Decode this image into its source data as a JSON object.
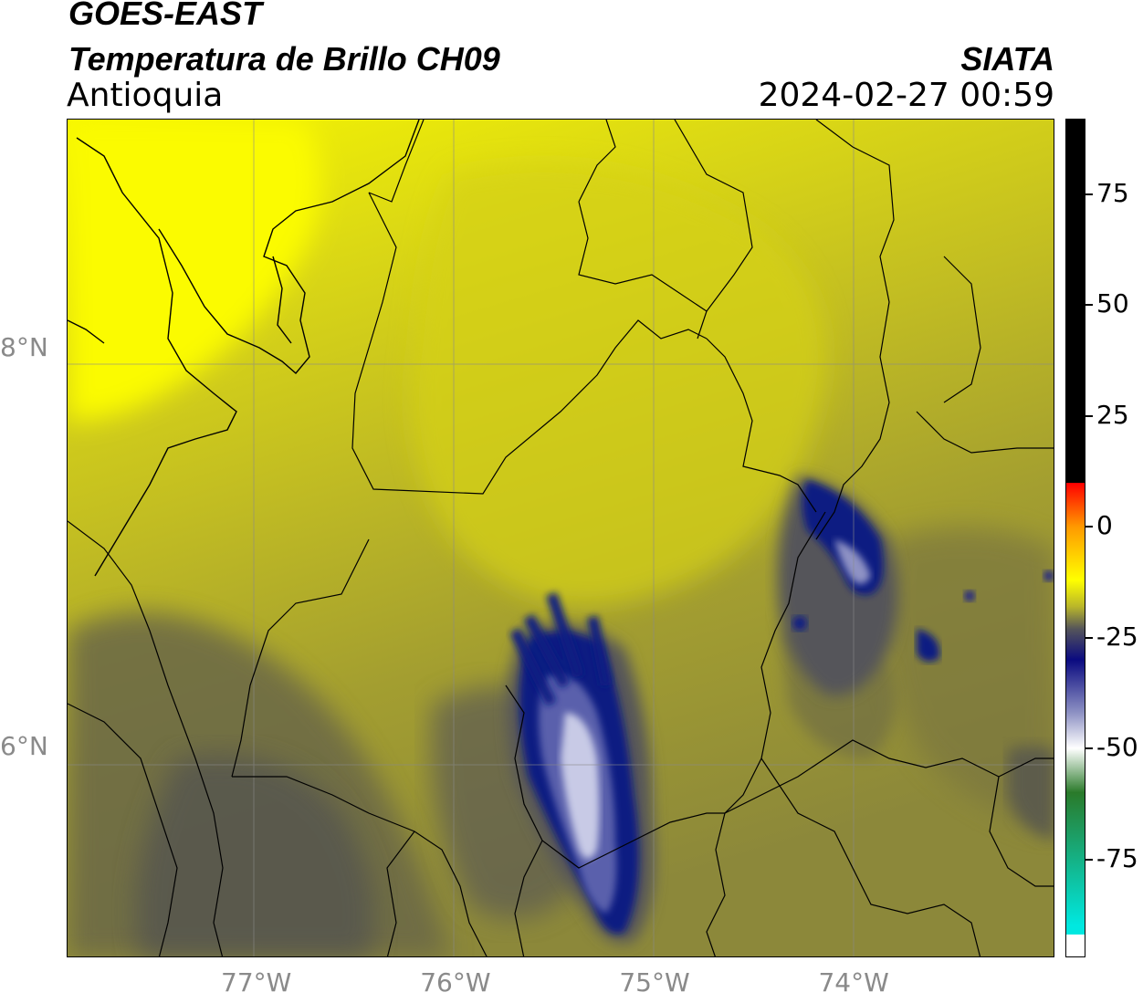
{
  "header": {
    "satellite": "GOES-EAST",
    "product": "Temperatura de Brillo CH09",
    "region": "Antioquia",
    "source": "SIATA",
    "datetime": "2024-02-27 00:59"
  },
  "map": {
    "lat_labels": [
      {
        "value": 8,
        "label": "8°N"
      },
      {
        "value": 6,
        "label": "6°N"
      }
    ],
    "lon_labels": [
      {
        "value": -77,
        "label": "77°W"
      },
      {
        "value": -76,
        "label": "76°W"
      },
      {
        "value": -75,
        "label": "75°W"
      },
      {
        "value": -74,
        "label": "74°W"
      }
    ],
    "extent": {
      "lon_min": -77.94,
      "lon_max": -72.98,
      "lat_min": 4.95,
      "lat_max": 9.15
    },
    "background_colors": {
      "light": "#f6f600",
      "mid": "#c8c31e",
      "dark": "#8e8a38",
      "darker": "#5c5a52"
    },
    "cold_cloud_colors": {
      "core": "#0f1a82",
      "mid": "#6f74b4",
      "light": "#d8daee"
    }
  },
  "colorbar": {
    "ticks": [
      {
        "value": 75,
        "label": "75"
      },
      {
        "value": 50,
        "label": "50"
      },
      {
        "value": 25,
        "label": "25"
      },
      {
        "value": 0,
        "label": "0"
      },
      {
        "value": -25,
        "label": "-25"
      },
      {
        "value": -50,
        "label": "-50"
      },
      {
        "value": -75,
        "label": "-75"
      }
    ],
    "range": [
      -97,
      92
    ],
    "stops": [
      {
        "value": 92,
        "color": "#000000"
      },
      {
        "value": 10,
        "color": "#000000"
      },
      {
        "value": 9.9,
        "color": "#ff0000"
      },
      {
        "value": 0,
        "color": "#ff9a00"
      },
      {
        "value": -12,
        "color": "#ffff00"
      },
      {
        "value": -18,
        "color": "#b9b62a"
      },
      {
        "value": -23,
        "color": "#55555a"
      },
      {
        "value": -30,
        "color": "#0a0a80"
      },
      {
        "value": -42,
        "color": "#8e92c4"
      },
      {
        "value": -50,
        "color": "#ffffff"
      },
      {
        "value": -60,
        "color": "#2a7a2a"
      },
      {
        "value": -90,
        "color": "#00e8e0"
      },
      {
        "value": -92,
        "color": "#00e8e0"
      },
      {
        "value": -92.1,
        "color": "#ffffff"
      },
      {
        "value": -97,
        "color": "#ffffff"
      }
    ]
  }
}
